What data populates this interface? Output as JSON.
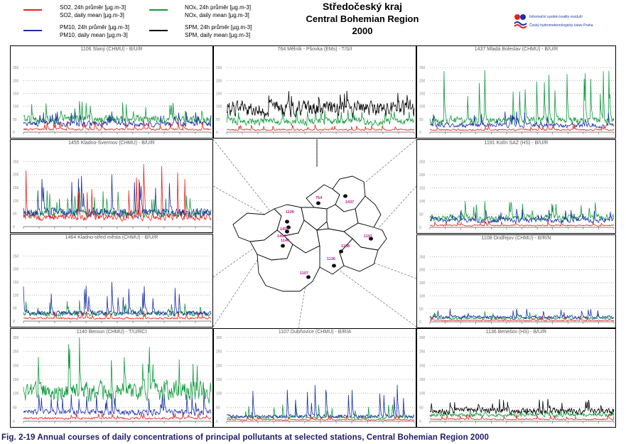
{
  "legend": {
    "items": [
      {
        "line1": "SO2, 24h průměr [µg.m-3]",
        "line2": "SO2, daily mean [µg.m-3]",
        "color": "#e8201a"
      },
      {
        "line1": "PM10, 24h průměr [µg.m-3]",
        "line2": "PM10, daily mean [µg.m-3]",
        "color": "#1a2fa8"
      },
      {
        "line1": "NOx, 24h průměr [µg.m-3]",
        "line2": "NOx, daily mean [µg.m-3]",
        "color": "#0f9a3c"
      },
      {
        "line1": "SPM, 24h průměr [µg.m-3]",
        "line2": "SPM, daily mean [µg.m-3]",
        "color": "#000000"
      }
    ]
  },
  "header": {
    "region_cz": "Středočeský kraj",
    "region_en": "Central Bohemian Region",
    "year": "2000"
  },
  "logo": {
    "line1": "Informační systém kvality ovzduší",
    "line2": "Český hydrometeorologický ústav Praha"
  },
  "caption": "Fig. 2-19  Annual courses of daily concentrations of principal pollutants at selected stations, Central Bohemian Region 2000",
  "colors": {
    "SO2": "#e8201a",
    "PM10": "#1a2fa8",
    "NOx": "#0f9a3c",
    "SPM": "#000000",
    "map_label": "#c0178f"
  },
  "map": {
    "stations": [
      {
        "code": "764"
      },
      {
        "code": "1437"
      },
      {
        "code": "1106"
      },
      {
        "code": "1455"
      },
      {
        "code": "1464"
      },
      {
        "code": "1140"
      },
      {
        "code": "1191"
      },
      {
        "code": "1108"
      },
      {
        "code": "1136"
      },
      {
        "code": "1107"
      }
    ]
  },
  "chart_data": [
    {
      "type": "line",
      "title": "1106 Slaný (CHMU) - B/U/R",
      "ylim": [
        0,
        300
      ],
      "y_ticks": [
        "0",
        "50",
        "100",
        "150",
        "200",
        "250"
      ],
      "series": [
        {
          "name": "SO2",
          "typical": 12,
          "peak": 45
        },
        {
          "name": "PM10",
          "typical": 35,
          "peak": 80
        },
        {
          "name": "NOx",
          "typical": 55,
          "peak": 120
        }
      ]
    },
    {
      "type": "line",
      "title": "764 Mělník - Pšovka (EMs) - T/S/I",
      "ylim": [
        0,
        300
      ],
      "y_ticks": [
        "0",
        "50",
        "100",
        "150",
        "200",
        "250"
      ],
      "series": [
        {
          "name": "SO2",
          "typical": 10,
          "peak": 30
        },
        {
          "name": "NOx",
          "typical": 45,
          "peak": 90
        },
        {
          "name": "SPM",
          "typical": 100,
          "peak": 160
        }
      ]
    },
    {
      "type": "line",
      "title": "1437 Mladá Boleslav (CHMU) - B/U/R",
      "ylim": [
        0,
        300
      ],
      "y_ticks": [
        "0",
        "50",
        "100",
        "150",
        "200",
        "250"
      ],
      "series": [
        {
          "name": "SO2",
          "typical": 10,
          "peak": 30
        },
        {
          "name": "PM10",
          "typical": 30,
          "peak": 80
        },
        {
          "name": "NOx",
          "typical": 50,
          "peak": 240
        }
      ]
    },
    {
      "type": "line",
      "title": "1455 Kladno-Švermov (CHMU) - B/U/R",
      "ylim": [
        0,
        300
      ],
      "y_ticks": [
        "0",
        "50",
        "100",
        "150",
        "200",
        "250"
      ],
      "series": [
        {
          "name": "SO2",
          "typical": 40,
          "peak": 240
        },
        {
          "name": "PM10",
          "typical": 60,
          "peak": 200
        },
        {
          "name": "NOx",
          "typical": 55,
          "peak": 150
        }
      ]
    },
    {
      "type": "line",
      "title": "1191 Kolín SAZ (HS) - B/U/R",
      "ylim": [
        0,
        300
      ],
      "y_ticks": [
        "0",
        "50",
        "100",
        "150",
        "200",
        "250"
      ],
      "series": [
        {
          "name": "SO2",
          "typical": 8,
          "peak": 25
        },
        {
          "name": "PM10",
          "typical": 30,
          "peak": 70
        },
        {
          "name": "NOx",
          "typical": 40,
          "peak": 100
        }
      ]
    },
    {
      "type": "line",
      "title": "1464 Kladno-střed města (CHMU) - B/U/R",
      "ylim": [
        0,
        300
      ],
      "y_ticks": [
        "0",
        "50",
        "100",
        "150",
        "200",
        "250"
      ],
      "series": [
        {
          "name": "SO2",
          "typical": 12,
          "peak": 40
        },
        {
          "name": "PM10",
          "typical": 35,
          "peak": 150
        },
        {
          "name": "NOx",
          "typical": 30,
          "peak": 80
        }
      ]
    },
    {
      "type": "line",
      "title": "1108 Ondřejov (CHMU) - B/R/N",
      "ylim": [
        0,
        300
      ],
      "y_ticks": [
        "0",
        "50",
        "100",
        "150",
        "200",
        "250"
      ],
      "series": [
        {
          "name": "SO2",
          "typical": 6,
          "peak": 20
        },
        {
          "name": "PM10",
          "typical": 20,
          "peak": 50
        },
        {
          "name": "NOx",
          "typical": 15,
          "peak": 40
        }
      ]
    },
    {
      "type": "line",
      "title": "1140 Beroun (CHMU) - T/U/RCI",
      "ylim": [
        0,
        300
      ],
      "y_ticks": [
        "0",
        "50",
        "100",
        "150",
        "200",
        "250",
        "300"
      ],
      "series": [
        {
          "name": "SO2",
          "typical": 12,
          "peak": 30
        },
        {
          "name": "PM10",
          "typical": 35,
          "peak": 100
        },
        {
          "name": "NOx",
          "typical": 120,
          "peak": 300
        }
      ]
    },
    {
      "type": "line",
      "title": "1107 Dubňovice (CHMU) - B/R/A",
      "ylim": [
        0,
        300
      ],
      "y_ticks": [
        "0",
        "50",
        "100",
        "150",
        "200",
        "250",
        "300"
      ],
      "series": [
        {
          "name": "SO2",
          "typical": 6,
          "peak": 20
        },
        {
          "name": "PM10",
          "typical": 20,
          "peak": 130
        },
        {
          "name": "NOx",
          "typical": 15,
          "peak": 60
        }
      ]
    },
    {
      "type": "line",
      "title": "1136 Benešov (HS) - B/U/R",
      "ylim": [
        0,
        300
      ],
      "y_ticks": [
        "0",
        "50",
        "100",
        "150",
        "200",
        "250",
        "300"
      ],
      "series": [
        {
          "name": "SO2",
          "typical": 8,
          "peak": 25
        },
        {
          "name": "NOx",
          "typical": 25,
          "peak": 40
        },
        {
          "name": "SPM",
          "typical": 40,
          "peak": 80
        }
      ]
    }
  ]
}
